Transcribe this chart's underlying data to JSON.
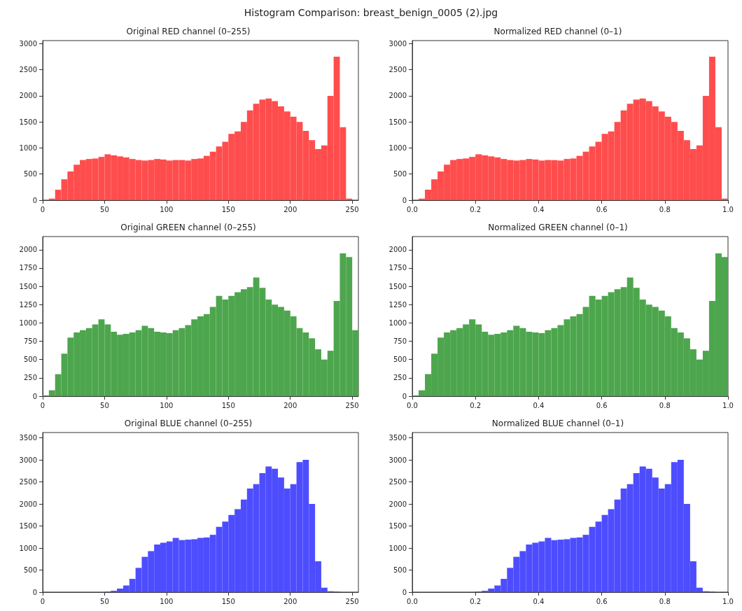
{
  "chart_data": [
    {
      "type": "histogram",
      "title": "Original RED channel (0–255)",
      "annotations": [
        "Histogram Comparison: breast_benign_0005 (2).jpg"
      ],
      "color": "#ff4d4d",
      "bins": [
        5,
        10,
        15,
        20,
        25,
        30,
        35,
        40,
        45,
        50,
        55,
        60,
        65,
        70,
        75,
        80,
        85,
        90,
        95,
        100,
        105,
        110,
        115,
        120,
        125,
        130,
        135,
        140,
        145,
        150,
        155,
        160,
        165,
        170,
        175,
        180,
        185,
        190,
        195,
        200,
        205,
        210,
        215,
        220,
        225,
        230,
        235,
        240,
        245,
        250
      ],
      "values": [
        30,
        200,
        400,
        550,
        680,
        770,
        790,
        800,
        830,
        880,
        860,
        840,
        820,
        790,
        770,
        760,
        770,
        790,
        780,
        760,
        770,
        770,
        760,
        790,
        800,
        850,
        930,
        1030,
        1120,
        1270,
        1320,
        1500,
        1720,
        1850,
        1930,
        1950,
        1900,
        1800,
        1700,
        1600,
        1500,
        1330,
        1150,
        980,
        1050,
        2000,
        2750,
        1400,
        30
      ],
      "xlim": [
        0,
        255
      ],
      "xticks": [
        0,
        50,
        100,
        150,
        200,
        250
      ],
      "ylim": [
        0,
        3060
      ],
      "yticks": [
        0,
        500,
        1000,
        1500,
        2000,
        2500,
        3000
      ]
    },
    {
      "type": "histogram",
      "title": "Normalized RED channel (0–1)",
      "color": "#ff4d4d",
      "bins": [
        0,
        0.02,
        0.04,
        0.06,
        0.08,
        0.1,
        0.12,
        0.14,
        0.16,
        0.18,
        0.2,
        0.22,
        0.24,
        0.26,
        0.28,
        0.3,
        0.32,
        0.34,
        0.36,
        0.38,
        0.4,
        0.42,
        0.44,
        0.46,
        0.48,
        0.5,
        0.52,
        0.54,
        0.56,
        0.58,
        0.6,
        0.62,
        0.64,
        0.66,
        0.68,
        0.7,
        0.72,
        0.74,
        0.76,
        0.78,
        0.8,
        0.82,
        0.84,
        0.86,
        0.88,
        0.9,
        0.92,
        0.94,
        0.96,
        0.98,
        1
      ],
      "values": [
        0,
        30,
        200,
        400,
        550,
        680,
        770,
        790,
        800,
        830,
        880,
        860,
        840,
        820,
        790,
        770,
        760,
        770,
        790,
        780,
        760,
        770,
        770,
        760,
        790,
        800,
        850,
        930,
        1030,
        1120,
        1270,
        1320,
        1500,
        1720,
        1850,
        1930,
        1950,
        1900,
        1800,
        1700,
        1600,
        1500,
        1330,
        1150,
        980,
        1050,
        2000,
        2750,
        1400,
        30
      ],
      "xlim": [
        0,
        1
      ],
      "xticks": [
        {
          "value": 0,
          "label": "0.0"
        },
        {
          "value": 0.2,
          "label": "0.2"
        },
        {
          "value": 0.4,
          "label": "0.4"
        },
        {
          "value": 0.6,
          "label": "0.6"
        },
        {
          "value": 0.8,
          "label": "0.8"
        },
        {
          "value": 1,
          "label": "1.0"
        }
      ],
      "ylim": [
        0,
        3060
      ],
      "yticks": [
        0,
        500,
        1000,
        1500,
        2000,
        2500,
        3000
      ]
    },
    {
      "type": "histogram",
      "title": "Original GREEN channel (0–255)",
      "color": "#4da64d",
      "bins": [
        0,
        5,
        10,
        15,
        20,
        25,
        30,
        35,
        40,
        45,
        50,
        55,
        60,
        65,
        70,
        75,
        80,
        85,
        90,
        95,
        100,
        105,
        110,
        115,
        120,
        125,
        130,
        135,
        140,
        145,
        150,
        155,
        160,
        165,
        170,
        175,
        180,
        185,
        190,
        195,
        200,
        205,
        210,
        215,
        220,
        225,
        230,
        235,
        240,
        245,
        250,
        255
      ],
      "values": [
        10,
        80,
        300,
        580,
        800,
        870,
        900,
        930,
        980,
        1050,
        980,
        880,
        840,
        850,
        870,
        900,
        960,
        930,
        880,
        870,
        860,
        900,
        930,
        970,
        1050,
        1090,
        1120,
        1220,
        1370,
        1320,
        1370,
        1420,
        1460,
        1490,
        1620,
        1480,
        1320,
        1250,
        1220,
        1170,
        1090,
        930,
        870,
        790,
        640,
        500,
        620,
        1300,
        1950,
        1900,
        900
      ],
      "xlim": [
        0,
        255
      ],
      "xticks": [
        0,
        50,
        100,
        150,
        200,
        250
      ],
      "ylim": [
        0,
        2180
      ],
      "yticks": [
        0,
        250,
        500,
        750,
        1000,
        1250,
        1500,
        1750,
        2000
      ]
    },
    {
      "type": "histogram",
      "title": "Normalized GREEN channel (0–1)",
      "color": "#4da64d",
      "bins": [
        0,
        0.02,
        0.04,
        0.06,
        0.08,
        0.1,
        0.12,
        0.14,
        0.16,
        0.18,
        0.2,
        0.22,
        0.24,
        0.26,
        0.28,
        0.3,
        0.32,
        0.34,
        0.36,
        0.38,
        0.4,
        0.42,
        0.44,
        0.46,
        0.48,
        0.5,
        0.52,
        0.54,
        0.56,
        0.58,
        0.6,
        0.62,
        0.64,
        0.66,
        0.68,
        0.7,
        0.72,
        0.74,
        0.76,
        0.78,
        0.8,
        0.82,
        0.84,
        0.86,
        0.88,
        0.9,
        0.92,
        0.94,
        0.96,
        0.98,
        1
      ],
      "values": [
        10,
        80,
        300,
        580,
        800,
        870,
        900,
        930,
        980,
        1050,
        980,
        880,
        840,
        850,
        870,
        900,
        960,
        930,
        880,
        870,
        860,
        900,
        930,
        970,
        1050,
        1090,
        1120,
        1220,
        1370,
        1320,
        1370,
        1420,
        1460,
        1490,
        1620,
        1480,
        1320,
        1250,
        1220,
        1170,
        1090,
        930,
        870,
        790,
        640,
        500,
        620,
        1300,
        1950,
        1900
      ],
      "xlim": [
        0,
        1
      ],
      "xticks": [
        {
          "value": 0,
          "label": "0.0"
        },
        {
          "value": 0.2,
          "label": "0.2"
        },
        {
          "value": 0.4,
          "label": "0.4"
        },
        {
          "value": 0.6,
          "label": "0.6"
        },
        {
          "value": 0.8,
          "label": "0.8"
        },
        {
          "value": 1,
          "label": "1.0"
        }
      ],
      "ylim": [
        0,
        2180
      ],
      "yticks": [
        0,
        250,
        500,
        750,
        1000,
        1250,
        1500,
        1750,
        2000
      ]
    },
    {
      "type": "histogram",
      "title": "Original BLUE channel (0–255)",
      "color": "#4d4dff",
      "bins": [
        50,
        55,
        60,
        65,
        70,
        75,
        80,
        85,
        90,
        95,
        100,
        105,
        110,
        115,
        120,
        125,
        130,
        135,
        140,
        145,
        150,
        155,
        160,
        165,
        170,
        175,
        180,
        185,
        190,
        195,
        200,
        205,
        210,
        215,
        220,
        225,
        230,
        235,
        240
      ],
      "values": [
        10,
        30,
        80,
        150,
        300,
        550,
        800,
        930,
        1080,
        1120,
        1150,
        1230,
        1180,
        1190,
        1200,
        1230,
        1240,
        1300,
        1480,
        1600,
        1750,
        1880,
        2100,
        2350,
        2450,
        2700,
        2850,
        2800,
        2600,
        2350,
        2450,
        2950,
        3000,
        2000,
        700,
        100,
        20,
        10
      ],
      "xlim": [
        0,
        255
      ],
      "xticks": [
        0,
        50,
        100,
        150,
        200,
        250
      ],
      "ylim": [
        0,
        3620
      ],
      "yticks": [
        0,
        500,
        1000,
        1500,
        2000,
        2500,
        3000,
        3500
      ]
    },
    {
      "type": "histogram",
      "title": "Normalized BLUE channel (0–1)",
      "color": "#4d4dff",
      "bins": [
        0.2,
        0.22,
        0.24,
        0.26,
        0.28,
        0.3,
        0.32,
        0.34,
        0.36,
        0.38,
        0.4,
        0.42,
        0.44,
        0.46,
        0.48,
        0.5,
        0.52,
        0.54,
        0.56,
        0.58,
        0.6,
        0.62,
        0.64,
        0.66,
        0.68,
        0.7,
        0.72,
        0.74,
        0.76,
        0.78,
        0.8,
        0.82,
        0.84,
        0.86,
        0.88,
        0.9,
        0.92,
        0.94,
        0.96
      ],
      "values": [
        10,
        30,
        80,
        150,
        300,
        550,
        800,
        930,
        1080,
        1120,
        1150,
        1230,
        1180,
        1190,
        1200,
        1230,
        1240,
        1300,
        1480,
        1600,
        1750,
        1880,
        2100,
        2350,
        2450,
        2700,
        2850,
        2800,
        2600,
        2350,
        2450,
        2950,
        3000,
        2000,
        700,
        100,
        20,
        10
      ],
      "xlim": [
        0,
        1
      ],
      "xticks": [
        {
          "value": 0,
          "label": "0.0"
        },
        {
          "value": 0.2,
          "label": "0.2"
        },
        {
          "value": 0.4,
          "label": "0.4"
        },
        {
          "value": 0.6,
          "label": "0.6"
        },
        {
          "value": 0.8,
          "label": "0.8"
        },
        {
          "value": 1,
          "label": "1.0"
        }
      ],
      "ylim": [
        0,
        3620
      ],
      "yticks": [
        0,
        500,
        1000,
        1500,
        2000,
        2500,
        3000,
        3500
      ]
    }
  ]
}
